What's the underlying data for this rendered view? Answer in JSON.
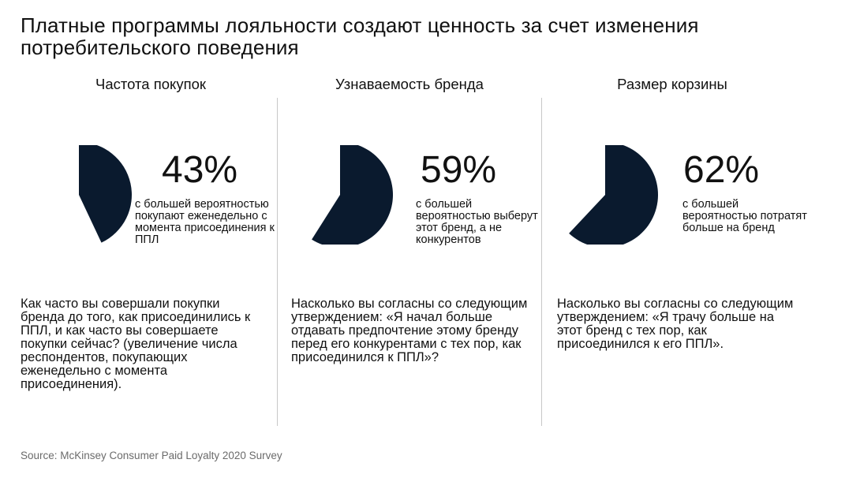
{
  "title": "Платные программы лояльности создают ценность за счет изменения потребительского поведения",
  "source": "Source: McKinsey Consumer Paid Loyalty 2020 Survey",
  "colors": {
    "pie_fill": "#0a1a2e",
    "divider": "#c8c8c8",
    "source_text": "#6b6b6b"
  },
  "chart_data": [
    {
      "type": "pie",
      "title": "Частота покупок",
      "value": 43,
      "label": "43%",
      "description": "с большей вероятностью покупают еженедельно с момента присоединения к ППЛ",
      "question": "Как часто вы совершали покупки бренда до того, как присоединились к ППЛ, и как часто вы совершаете покупки сейчас? (увеличение числа респондентов, покупающих еженедельно с момента присоединения)."
    },
    {
      "type": "pie",
      "title": "Узнаваемость бренда",
      "value": 59,
      "label": "59%",
      "description": "с большей вероятностью выберут этот бренд, а не конкурентов",
      "question": "Насколько вы согласны со следующим утверждением: «Я начал больше отдавать предпочтение этому бренду перед его конкурентами с тех пор, как присоединился к ППЛ»?"
    },
    {
      "type": "pie",
      "title": "Размер корзины",
      "value": 62,
      "label": "62%",
      "description": "с большей вероятностью потратят больше на бренд",
      "question": "Насколько вы согласны со следующим утверждением: «Я трачу больше на этот бренд с тех пор, как присоединился к его ППЛ»."
    }
  ]
}
